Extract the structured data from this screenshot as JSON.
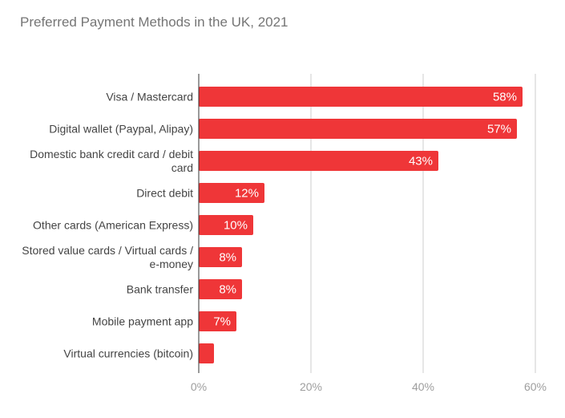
{
  "chart_data": {
    "type": "bar",
    "orientation": "horizontal",
    "title": "Preferred Payment Methods in the UK, 2021",
    "categories": [
      [
        "Visa / Mastercard"
      ],
      [
        "Digital wallet (Paypal, Alipay)"
      ],
      [
        "Domestic bank credit card / debit",
        "card"
      ],
      [
        "Direct debit"
      ],
      [
        "Other cards (American Express)"
      ],
      [
        "Stored value cards / Virtual cards /",
        "e-money"
      ],
      [
        "Bank transfer"
      ],
      [
        "Mobile payment app"
      ],
      [
        "Virtual currencies (bitcoin)"
      ]
    ],
    "values": [
      58,
      57,
      43,
      12,
      10,
      8,
      8,
      7,
      3
    ],
    "data_labels": [
      "58%",
      "57%",
      "43%",
      "12%",
      "10%",
      "8%",
      "8%",
      "7%",
      ""
    ],
    "xlim": [
      0,
      60
    ],
    "xticks": [
      0,
      20,
      40,
      60
    ],
    "xtick_labels": [
      "0%",
      "20%",
      "40%",
      "60%"
    ],
    "grid": true,
    "legend": "none",
    "colors": {
      "bar": "#ef3638",
      "grid": "#cccccc",
      "axis": "#333333"
    }
  }
}
